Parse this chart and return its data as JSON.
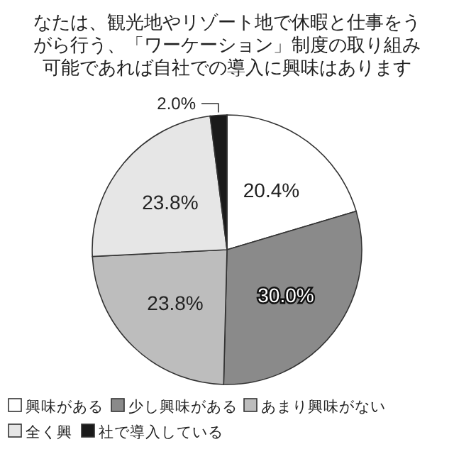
{
  "chart_data": {
    "type": "pie",
    "title": "なたは、観光地やリゾート地で休暇と仕事をうがら行う、「ワーケーション」制度の取り組み可能であれば自社での導入に興味はあります",
    "categories": [
      "興味がある",
      "少し興味がある",
      "あまり興味がない",
      "全く興",
      "社で導入している"
    ],
    "values": [
      20.4,
      30.0,
      23.8,
      23.8,
      2.0
    ],
    "colors": [
      "#ffffff",
      "#8a8a8a",
      "#bdbdbd",
      "#e6e6e6",
      "#1a1a1a"
    ],
    "value_labels": [
      "20.4%",
      "30.0%",
      "23.8%",
      "23.8%",
      "2.0%"
    ],
    "legend": "bottom"
  }
}
